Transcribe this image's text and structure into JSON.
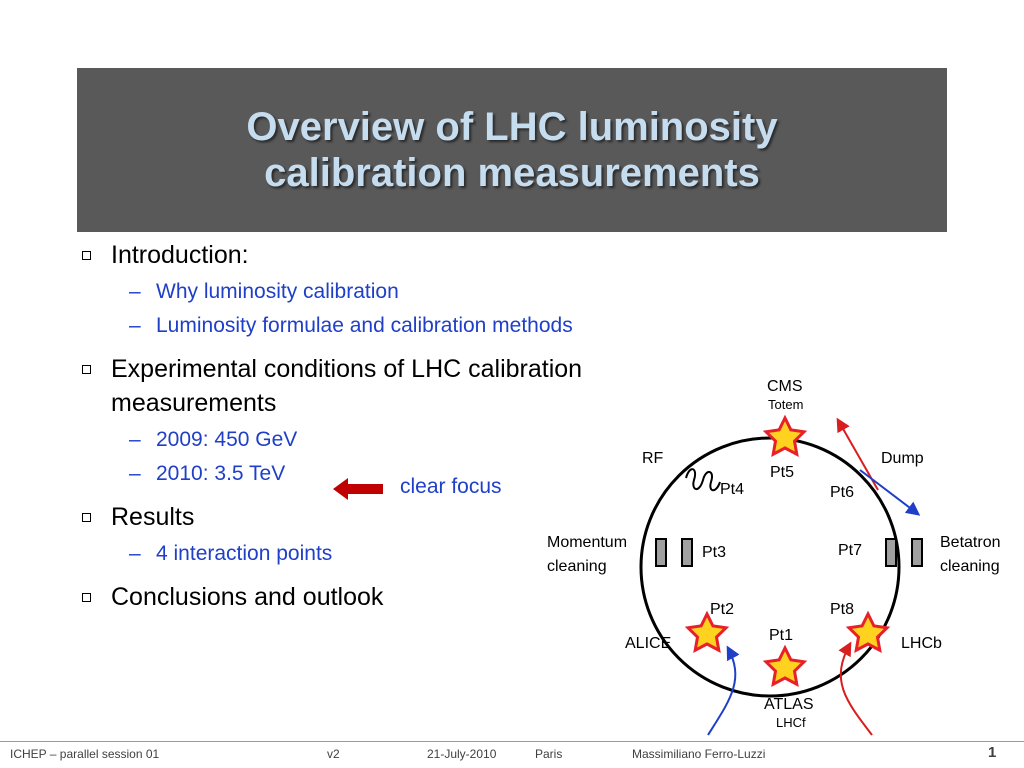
{
  "title": {
    "line1": "Overview of LHC luminosity",
    "line2": "calibration measurements"
  },
  "bullets": [
    {
      "text": "Introduction:",
      "subs": [
        "Why luminosity calibration",
        "Luminosity formulae and calibration methods"
      ]
    },
    {
      "text_line1": "Experimental conditions of LHC calibration",
      "text_line2": "measurements",
      "subs": [
        "2009: 450 GeV",
        "2010: 3.5 TeV"
      ]
    },
    {
      "text": "Results",
      "subs": [
        "4 interaction points"
      ]
    },
    {
      "text": "Conclusions and outlook"
    }
  ],
  "focus_label": "clear focus",
  "diagram": {
    "cms": "CMS",
    "totem": "Totem",
    "rf": "RF",
    "dump": "Dump",
    "pt5": "Pt5",
    "pt4": "Pt4",
    "pt6": "Pt6",
    "pt3": "Pt3",
    "pt7": "Pt7",
    "pt2": "Pt2",
    "pt8": "Pt8",
    "pt1": "Pt1",
    "momentum1": "Momentum",
    "momentum2": "cleaning",
    "betatron1": "Betatron",
    "betatron2": "cleaning",
    "alice": "ALICE",
    "lhcb": "LHCb",
    "atlas": "ATLAS",
    "lhcf": "LHCf",
    "colors": {
      "star_fill": "#ffd21f",
      "star_stroke": "#e8202a",
      "beam1": "#1f3fc8",
      "beam2": "#d81e1e",
      "arrow": "#c00000"
    }
  },
  "footer": {
    "conference": "ICHEP – parallel session 01",
    "version": "v2",
    "date": "21-July-2010",
    "place": "Paris",
    "author": "Massimiliano Ferro-Luzzi",
    "page": "1"
  }
}
